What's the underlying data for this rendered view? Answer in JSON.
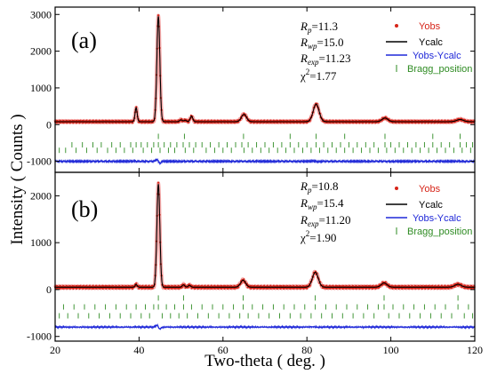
{
  "figure": {
    "xlabel": "Two-theta ( deg. )",
    "ylabel": "Intensity ( Counts )",
    "xticks": [
      "20",
      "40",
      "60",
      "80",
      "100",
      "120"
    ]
  },
  "colors": {
    "yobs": "#d62418",
    "ycalc": "#000000",
    "diff": "#1f28d8",
    "bragg": "#2e8b22",
    "obs_halo": "#f4a6a6"
  },
  "chart_data": [
    {
      "type": "line",
      "panel_label": "(a)",
      "xlim": [
        20,
        120
      ],
      "ylim": [
        -1300,
        3200
      ],
      "yticks": [
        "-1000",
        "0",
        "1000",
        "2000",
        "3000"
      ],
      "grid": false,
      "legend_position": "top-right",
      "stats": {
        "rp_sym": "R",
        "rp_sub": "p",
        "rp_val": "=11.3",
        "rwp_sym": "R",
        "rwp_sub": "wp",
        "rwp_val": "=15.0",
        "rexp_sym": "R",
        "rexp_sub": "exp",
        "rexp_val": "=11.23",
        "chi_sym": "χ",
        "chi_sup": "2",
        "chi_val": "=1.77"
      },
      "legend": {
        "yobs": "Yobs",
        "ycalc": "Ycalc",
        "diff": "Yobs-Ycalc",
        "bragg": "Bragg_position"
      },
      "baseline": 80,
      "diff_offset": -1000,
      "peaks": [
        {
          "x": 39.3,
          "height": 380,
          "width": 0.25
        },
        {
          "x": 44.6,
          "height": 2870,
          "width": 0.35
        },
        {
          "x": 50.0,
          "height": 50,
          "width": 0.3
        },
        {
          "x": 51.0,
          "height": 40,
          "width": 0.3
        },
        {
          "x": 52.5,
          "height": 150,
          "width": 0.3
        },
        {
          "x": 65.0,
          "height": 200,
          "width": 0.6
        },
        {
          "x": 82.2,
          "height": 480,
          "width": 0.7
        },
        {
          "x": 98.6,
          "height": 100,
          "width": 0.7
        },
        {
          "x": 116.5,
          "height": 60,
          "width": 0.8
        }
      ],
      "bragg_rows": [
        {
          "y": -320,
          "x": [
            44.6,
            50.8,
            64.9,
            76.0,
            82.2,
            89.0,
            98.6,
            110.0,
            116.5
          ]
        },
        {
          "y": -550,
          "x": [
            24.0,
            26.5,
            29.0,
            31.0,
            33.5,
            35.5,
            38.0,
            39.3,
            40.5,
            42.0,
            43.5,
            44.6,
            46.0,
            47.5,
            49.0,
            50.5,
            52.0,
            53.5,
            55.0,
            57.0,
            59.0,
            61.0,
            63.0,
            64.5,
            66.0,
            68.0,
            70.0,
            72.0,
            74.0,
            76.0,
            78.0,
            80.0,
            82.2,
            84.0,
            86.0,
            88.0,
            90.0,
            92.0,
            94.0,
            96.0,
            98.6,
            100.0,
            102.0,
            104.0,
            106.0,
            108.0,
            110.0,
            112.0,
            114.0,
            116.5,
            118.0,
            119.5
          ]
        },
        {
          "y": -700,
          "x": [
            21.0,
            22.5,
            25.0,
            27.5,
            30.0,
            32.5,
            34.5,
            36.5,
            38.5,
            41.0,
            43.0,
            45.0,
            47.0,
            48.5,
            51.0,
            53.0,
            56.0,
            58.0,
            60.0,
            62.0,
            65.0,
            67.0,
            69.0,
            71.0,
            73.0,
            75.0,
            77.0,
            79.0,
            81.0,
            83.0,
            85.0,
            87.0,
            89.0,
            91.0,
            93.0,
            95.0,
            97.0,
            99.0,
            101.0,
            103.0,
            105.0,
            107.0,
            109.0,
            111.0,
            113.0,
            115.0,
            117.0,
            119.0
          ]
        }
      ]
    },
    {
      "type": "line",
      "panel_label": "(b)",
      "xlim": [
        20,
        120
      ],
      "ylim": [
        -1100,
        2500
      ],
      "yticks": [
        "-1000",
        "0",
        "1000",
        "2000"
      ],
      "grid": false,
      "legend_position": "top-right",
      "stats": {
        "rp_sym": "R",
        "rp_sub": "p",
        "rp_val": "=10.8",
        "rwp_sym": "R",
        "rwp_sub": "wp",
        "rwp_val": "=15.4",
        "rexp_sym": "R",
        "rexp_sub": "exp",
        "rexp_val": "=11.20",
        "chi_sym": "χ",
        "chi_sup": "2",
        "chi_val": "=1.90"
      },
      "legend": {
        "yobs": "Yobs",
        "ycalc": "Ycalc",
        "diff": "Yobs-Ycalc",
        "bragg": "Bragg_position"
      },
      "baseline": 50,
      "diff_offset": -800,
      "peaks": [
        {
          "x": 39.3,
          "height": 60,
          "width": 0.25
        },
        {
          "x": 44.6,
          "height": 2200,
          "width": 0.35
        },
        {
          "x": 50.6,
          "height": 50,
          "width": 0.3
        },
        {
          "x": 52.0,
          "height": 40,
          "width": 0.3
        },
        {
          "x": 64.8,
          "height": 150,
          "width": 0.6
        },
        {
          "x": 82.0,
          "height": 320,
          "width": 0.7
        },
        {
          "x": 98.4,
          "height": 90,
          "width": 0.7
        },
        {
          "x": 116.0,
          "height": 60,
          "width": 0.8
        }
      ],
      "bragg_rows": [
        {
          "y": -180,
          "x": [
            44.6,
            50.6,
            64.8,
            82.0,
            98.4,
            116.0
          ]
        },
        {
          "y": -370,
          "x": [
            22.0,
            24.5,
            27.0,
            29.5,
            32.0,
            34.5,
            37.0,
            39.3,
            41.5,
            43.5,
            44.6,
            46.5,
            48.5,
            50.6,
            52.5,
            55.0,
            57.5,
            60.0,
            62.5,
            64.8,
            67.0,
            69.5,
            72.0,
            74.5,
            77.0,
            79.5,
            82.0,
            84.5,
            87.0,
            89.5,
            92.0,
            94.5,
            97.0,
            98.4,
            100.5,
            103.0,
            105.5,
            108.0,
            110.5,
            113.0,
            116.0,
            118.5
          ]
        },
        {
          "y": -560,
          "x": [
            21.0,
            23.0,
            25.5,
            28.0,
            30.5,
            33.0,
            35.5,
            38.0,
            40.5,
            42.5,
            45.5,
            47.5,
            49.5,
            51.5,
            54.0,
            56.5,
            59.0,
            61.5,
            64.0,
            66.0,
            68.5,
            71.0,
            73.5,
            76.0,
            78.5,
            81.0,
            83.5,
            86.0,
            88.5,
            91.0,
            93.5,
            96.0,
            99.5,
            102.0,
            104.5,
            107.0,
            109.5,
            112.0,
            114.5,
            117.5,
            119.5
          ]
        }
      ]
    }
  ]
}
